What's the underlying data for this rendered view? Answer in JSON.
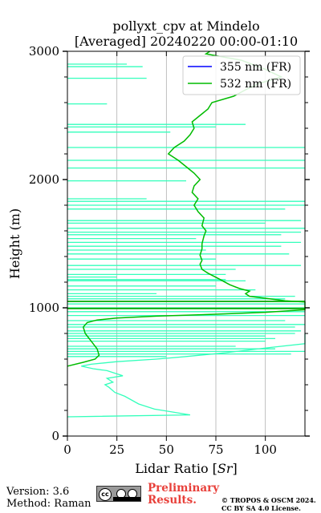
{
  "chart_data": {
    "type": "line",
    "title_line1": "pollyxt_cpv at Mindelo",
    "title_line2": "[Averaged] 20240220 00:00-01:10",
    "xlabel": "Lidar Ratio [Sr]",
    "ylabel": "Height (m)",
    "xlim": [
      0,
      120
    ],
    "ylim": [
      0,
      3000
    ],
    "xticks": [
      0,
      25,
      50,
      75,
      100
    ],
    "yticks": [
      0,
      1000,
      2000,
      3000
    ],
    "grid": "vertical",
    "legend": "top-right",
    "series": [
      {
        "name": "355 nm (FR)",
        "color": "#0000ff",
        "points": []
      },
      {
        "name": "532 nm (FR)",
        "color": "#00bb00",
        "points": [
          [
            0,
            545
          ],
          [
            8,
            575
          ],
          [
            14,
            600
          ],
          [
            16,
            630
          ],
          [
            15,
            680
          ],
          [
            12,
            740
          ],
          [
            9,
            800
          ],
          [
            8,
            850
          ],
          [
            10,
            885
          ],
          [
            15,
            905
          ],
          [
            25,
            920
          ],
          [
            45,
            935
          ],
          [
            75,
            950
          ],
          [
            100,
            965
          ],
          [
            120,
            985
          ],
          [
            120,
            1045
          ],
          [
            110,
            1055
          ],
          [
            92,
            1090
          ],
          [
            90,
            1110
          ],
          [
            92,
            1130
          ],
          [
            87,
            1150
          ],
          [
            82,
            1180
          ],
          [
            76,
            1230
          ],
          [
            71,
            1270
          ],
          [
            68,
            1300
          ],
          [
            67,
            1340
          ],
          [
            68,
            1370
          ],
          [
            67,
            1410
          ],
          [
            68,
            1460
          ],
          [
            68,
            1500
          ],
          [
            69,
            1560
          ],
          [
            70,
            1600
          ],
          [
            68,
            1640
          ],
          [
            69,
            1700
          ],
          [
            66,
            1750
          ],
          [
            64,
            1800
          ],
          [
            66,
            1850
          ],
          [
            63,
            1900
          ],
          [
            64,
            1950
          ],
          [
            67,
            2000
          ],
          [
            64,
            2050
          ],
          [
            60,
            2100
          ],
          [
            56,
            2150
          ],
          [
            51,
            2200
          ],
          [
            54,
            2250
          ],
          [
            59,
            2300
          ],
          [
            62,
            2350
          ],
          [
            64,
            2400
          ],
          [
            63,
            2450
          ],
          [
            67,
            2500
          ],
          [
            71,
            2550
          ],
          [
            73,
            2600
          ],
          [
            84,
            2650
          ],
          [
            90,
            2700
          ],
          [
            97,
            2750
          ],
          [
            108,
            2800
          ],
          [
            100,
            2860
          ],
          [
            88,
            2930
          ],
          [
            70,
            2980
          ],
          [
            72,
            3000
          ]
        ]
      }
    ],
    "overlay_color": "#33ffbb",
    "overlay_profile": [
      [
        0,
        150
      ],
      [
        62,
        165
      ],
      [
        54,
        185
      ],
      [
        44,
        210
      ],
      [
        36,
        250
      ],
      [
        29,
        310
      ],
      [
        24,
        340
      ],
      [
        21,
        380
      ],
      [
        19,
        400
      ],
      [
        23,
        420
      ],
      [
        20,
        450
      ],
      [
        28,
        470
      ],
      [
        24,
        490
      ],
      [
        20,
        510
      ],
      [
        13,
        525
      ],
      [
        7,
        545
      ],
      [
        12,
        560
      ],
      [
        25,
        580
      ],
      [
        45,
        600
      ],
      [
        60,
        620
      ],
      [
        80,
        650
      ],
      [
        102,
        690
      ],
      [
        120,
        720
      ],
      [
        120,
        800
      ]
    ],
    "overlay_spikes": [
      [
        1850,
        40
      ],
      [
        2880,
        38
      ],
      [
        2790,
        40
      ],
      [
        2900,
        30
      ],
      [
        2590,
        20
      ],
      [
        2410,
        75
      ],
      [
        2370,
        52
      ],
      [
        2430,
        90
      ],
      [
        2250,
        120
      ],
      [
        2150,
        120
      ],
      [
        2090,
        120
      ],
      [
        1990,
        60
      ],
      [
        1830,
        120
      ],
      [
        1800,
        120
      ],
      [
        1770,
        110
      ],
      [
        1680,
        118
      ],
      [
        1660,
        100
      ],
      [
        1620,
        120
      ],
      [
        1590,
        118
      ],
      [
        1570,
        108
      ],
      [
        1540,
        65
      ],
      [
        1510,
        118
      ],
      [
        1480,
        108
      ],
      [
        1450,
        70
      ],
      [
        1420,
        112
      ],
      [
        1380,
        75
      ],
      [
        1330,
        118
      ],
      [
        1300,
        85
      ],
      [
        1260,
        80
      ],
      [
        1240,
        25
      ],
      [
        1220,
        80
      ],
      [
        1210,
        90
      ],
      [
        1170,
        75
      ],
      [
        1140,
        95
      ],
      [
        1110,
        45
      ],
      [
        1090,
        115
      ],
      [
        1070,
        110
      ],
      [
        1030,
        120
      ],
      [
        1000,
        120
      ],
      [
        970,
        120
      ],
      [
        940,
        120
      ],
      [
        900,
        110
      ],
      [
        870,
        120
      ],
      [
        850,
        115
      ],
      [
        820,
        118
      ],
      [
        800,
        115
      ],
      [
        780,
        100
      ],
      [
        760,
        105
      ],
      [
        740,
        100
      ],
      [
        700,
        85
      ],
      [
        680,
        105
      ],
      [
        660,
        120
      ],
      [
        640,
        113
      ],
      [
        620,
        50
      ]
    ],
    "dark_green_lines": [
      1050,
      995
    ]
  },
  "footer": {
    "version": "Version: 3.6",
    "method": "Method: Raman",
    "preliminary": "Preliminary Results.",
    "copyright_line1": "© TROPOS & OSCM 2024.",
    "copyright_line2": "CC BY SA 4.0 License.",
    "license_badge": "cc by sa"
  }
}
